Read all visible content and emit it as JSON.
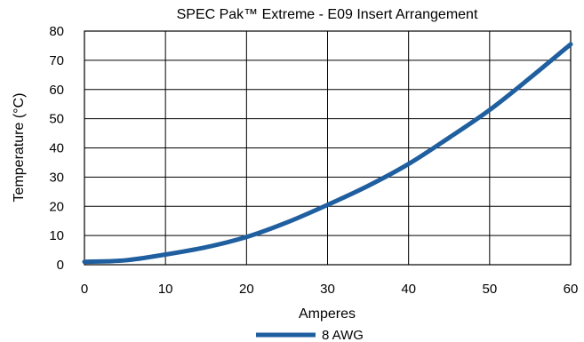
{
  "chart_data": {
    "type": "line",
    "title": "SPEC Pak™ Extreme - E09 Insert Arrangement",
    "xlabel": "Amperes",
    "ylabel": "Temperature (°C)",
    "xlim": [
      0,
      60
    ],
    "ylim": [
      0,
      80
    ],
    "x_ticks": [
      0,
      10,
      20,
      30,
      40,
      50,
      60
    ],
    "y_ticks": [
      0,
      10,
      20,
      30,
      40,
      50,
      60,
      70,
      80
    ],
    "grid": true,
    "legend_position": "bottom-center",
    "series": [
      {
        "name": "8 AWG",
        "color": "#1f5fa0",
        "x": [
          0,
          5,
          10,
          15,
          20,
          25,
          30,
          35,
          40,
          45,
          50,
          55,
          60
        ],
        "y": [
          1,
          1.5,
          3.5,
          6,
          9.5,
          14.5,
          20.5,
          27,
          34.5,
          43.5,
          53,
          64,
          75.5
        ]
      }
    ]
  }
}
